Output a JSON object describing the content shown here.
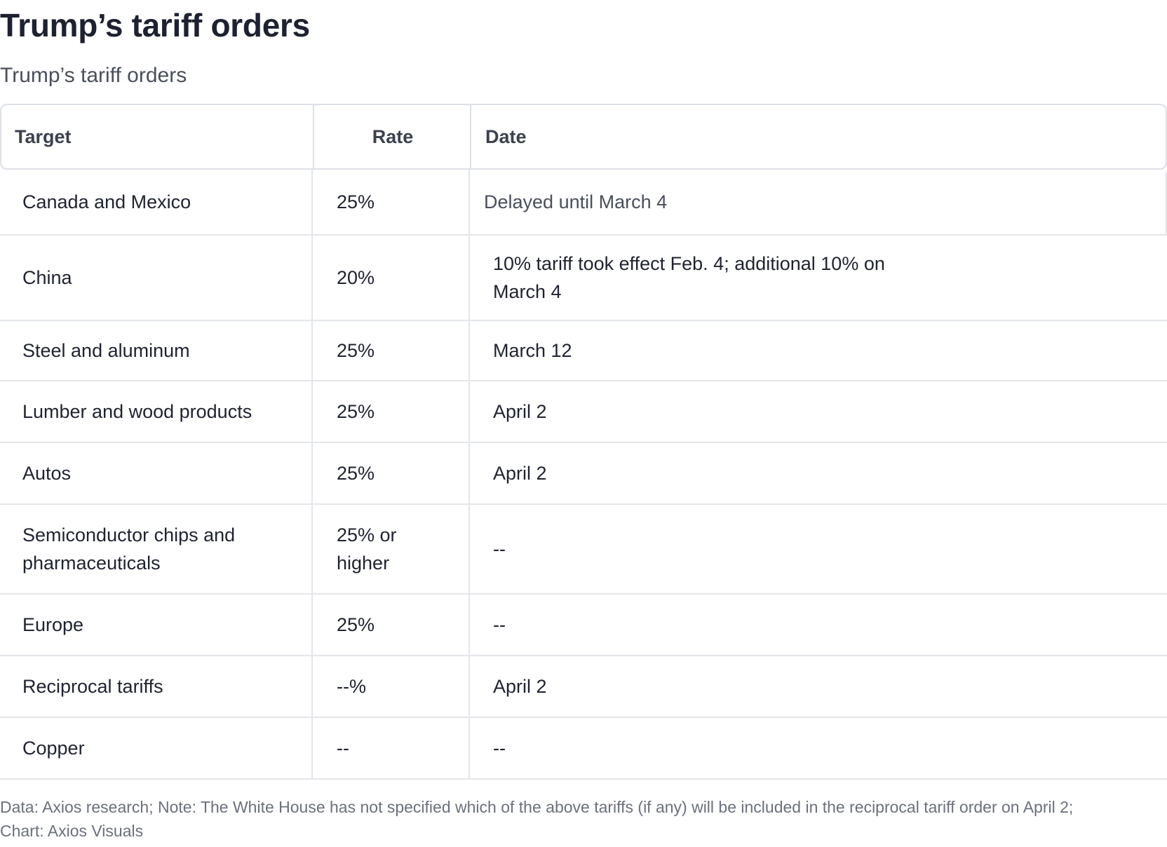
{
  "title": "Trump’s tariff orders",
  "subtitle": "Trump’s tariff orders",
  "chart_data": {
    "type": "table",
    "columns": [
      "Target",
      "Rate",
      "Date"
    ],
    "rows": [
      {
        "target": "Canada and Mexico",
        "rate": "25%",
        "date": "Delayed until March 4"
      },
      {
        "target": "China",
        "rate": "20%",
        "date": "10% tariff took effect Feb. 4; additional 10% on March 4"
      },
      {
        "target": "Steel and aluminum",
        "rate": "25%",
        "date": "March 12"
      },
      {
        "target": "Lumber and wood products",
        "rate": "25%",
        "date": "April 2"
      },
      {
        "target": "Autos",
        "rate": "25%",
        "date": "April 2"
      },
      {
        "target": "Semiconductor chips and pharmaceuticals",
        "rate": "25% or higher",
        "date": "--"
      },
      {
        "target": "Europe",
        "rate": "25%",
        "date": "--"
      },
      {
        "target": "Reciprocal tariffs",
        "rate": "--%",
        "date": "April 2"
      },
      {
        "target": "Copper",
        "rate": "--",
        "date": "--"
      }
    ]
  },
  "footnote": "Data: Axios research; Note: The White House has not specified which of the above tariffs (if any) will be included in the reciprocal tariff order on April 2; Chart: Axios Visuals",
  "colors": {
    "text": "#1f2330",
    "muted_text": "#4a4f5c",
    "border": "#dde0e6",
    "footnote": "#6b707c"
  }
}
